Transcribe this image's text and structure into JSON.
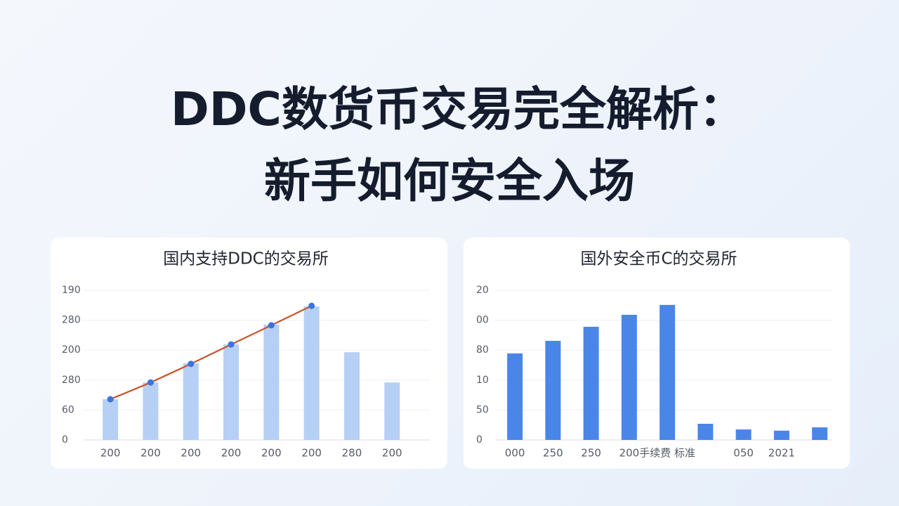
{
  "title_lines": [
    "DDC数货币交易完全解析：",
    "新手如何安全入场"
  ],
  "chart_data": [
    {
      "type": "bar",
      "title": "国内支持DDC的交易所",
      "categories": [
        "200",
        "200",
        "200",
        "200",
        "200",
        "200",
        "280",
        "200"
      ],
      "series": [
        {
          "type": "bar",
          "color": "#b6cff5",
          "values": [
            1.36,
            1.92,
            2.56,
            3.19,
            3.85,
            4.46,
            2.93,
            1.92
          ]
        },
        {
          "type": "line",
          "color": "#c8532b",
          "marker_color": "#3a74dc",
          "values": [
            1.36,
            1.92,
            2.54,
            3.19,
            3.83,
            4.48,
            null,
            null
          ]
        }
      ],
      "ylim": [
        0,
        5
      ],
      "yticks": [
        {
          "value": 0,
          "label": "0"
        },
        {
          "value": 1,
          "label": "60"
        },
        {
          "value": 2,
          "label": "280"
        },
        {
          "value": 3,
          "label": "200"
        },
        {
          "value": 4,
          "label": "280"
        },
        {
          "value": 5,
          "label": "190"
        }
      ],
      "grid": true
    },
    {
      "type": "bar",
      "title": "国外安全币C的交易所",
      "categories": [
        "000",
        "250",
        "250",
        "200",
        "手续费 标准",
        null,
        "050",
        "2021",
        null
      ],
      "series": [
        {
          "type": "bar",
          "color": "#4a86e8",
          "values": [
            2.89,
            3.31,
            3.78,
            4.18,
            4.51,
            0.54,
            0.35,
            0.31,
            0.42
          ]
        }
      ],
      "ylim": [
        0,
        5
      ],
      "yticks": [
        {
          "value": 0,
          "label": "0"
        },
        {
          "value": 1,
          "label": "50"
        },
        {
          "value": 2,
          "label": "10"
        },
        {
          "value": 3,
          "label": "80"
        },
        {
          "value": 4,
          "label": "00"
        },
        {
          "value": 5,
          "label": "20"
        }
      ],
      "grid": true
    }
  ]
}
